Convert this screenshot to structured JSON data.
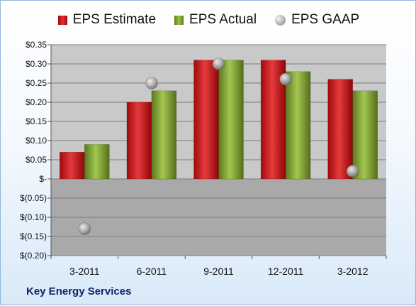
{
  "chart_data": {
    "type": "bar",
    "categories": [
      "3-2011",
      "6-2011",
      "9-2011",
      "12-2011",
      "3-2012"
    ],
    "series": [
      {
        "name": "EPS Estimate",
        "kind": "bar",
        "color": "#c8181b",
        "values": [
          0.07,
          0.2,
          0.31,
          0.31,
          0.26
        ]
      },
      {
        "name": "EPS Actual",
        "kind": "bar",
        "color": "#7fa33a",
        "values": [
          0.09,
          0.23,
          0.31,
          0.28,
          0.23
        ]
      },
      {
        "name": "EPS GAAP",
        "kind": "marker",
        "color": "#9a9a9a",
        "values": [
          -0.13,
          0.25,
          0.3,
          0.26,
          0.02
        ]
      }
    ],
    "yticks": [
      0.35,
      0.3,
      0.25,
      0.2,
      0.15,
      0.1,
      0.05,
      0,
      -0.05,
      -0.1,
      -0.15,
      -0.2
    ],
    "ytick_labels": [
      "$0.35",
      "$0.30",
      "$0.25",
      "$0.20",
      "$0.15",
      "$0.10",
      "$0.05",
      "$-",
      "$(0.05)",
      "$(0.10)",
      "$(0.15)",
      "$(0.20)"
    ],
    "ylim": [
      -0.2,
      0.35
    ],
    "grid": true,
    "legend_position": "top"
  },
  "company": "Key Energy Services",
  "colors": {
    "plot_positive": "#c9c9c9",
    "plot_negative": "#a9a9a9",
    "company_text": "#10256b"
  }
}
